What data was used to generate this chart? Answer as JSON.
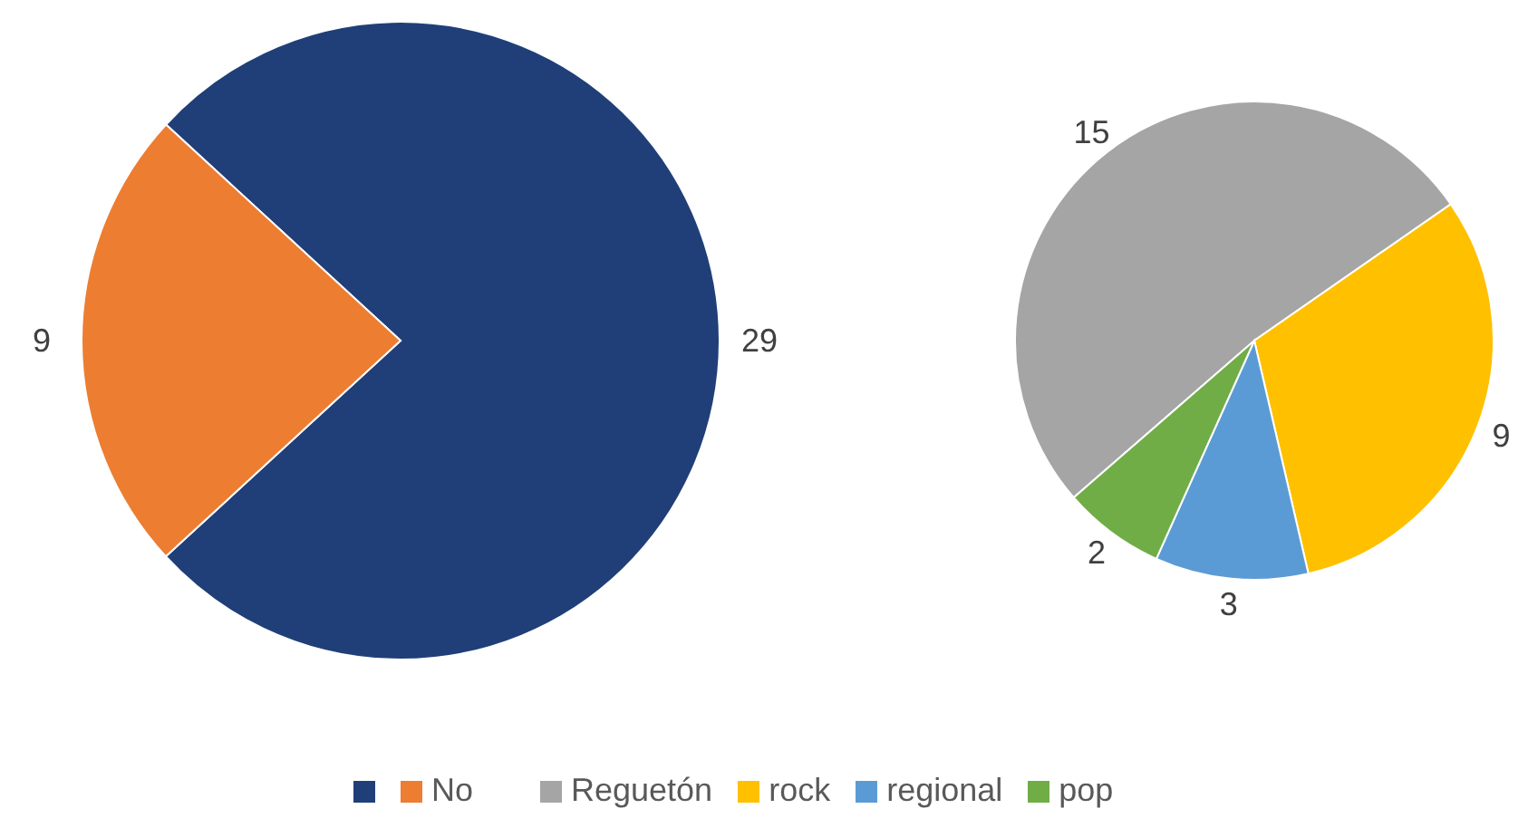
{
  "chart_data": [
    {
      "type": "pie",
      "categories": [
        null,
        "No"
      ],
      "values": [
        29,
        9
      ],
      "colors": [
        "#203f78",
        "#ed7d31"
      ],
      "data_labels": true,
      "legend": "bottom"
    },
    {
      "type": "pie",
      "categories": [
        "Reguetón",
        "rock",
        "regional",
        "pop"
      ],
      "values": [
        15,
        9,
        3,
        2
      ],
      "colors": [
        "#a5a5a5",
        "#ffc000",
        "#5b9bd5",
        "#70ad47"
      ],
      "data_labels": true,
      "legend": "bottom"
    }
  ]
}
